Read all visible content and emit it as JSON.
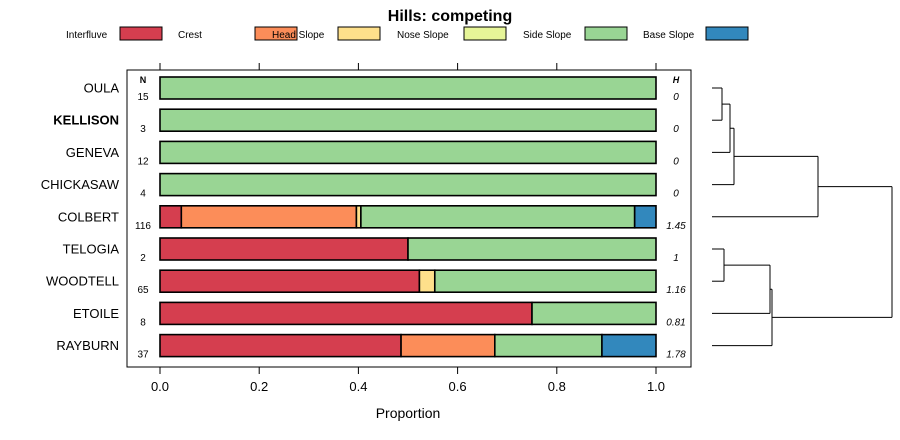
{
  "chart_data": {
    "type": "bar",
    "orientation": "horizontal",
    "stacked": true,
    "title": "Hills: competing",
    "xlabel": "Proportion",
    "xlim": [
      0,
      1
    ],
    "xticks": [
      "0.0",
      "0.2",
      "0.4",
      "0.6",
      "0.8",
      "1.0"
    ],
    "n_header": "N",
    "h_header": "H",
    "legend": [
      {
        "name": "Interfluve",
        "color": "#d53e4f"
      },
      {
        "name": "Crest",
        "color": "#fc8d59"
      },
      {
        "name": "Head Slope",
        "color": "#fee08b"
      },
      {
        "name": "Nose Slope",
        "color": "#e6f598"
      },
      {
        "name": "Side Slope",
        "color": "#99d594"
      },
      {
        "name": "Base Slope",
        "color": "#3288bd"
      }
    ],
    "categories": [
      {
        "name": "OULA",
        "bold": false,
        "n": "15",
        "h": "0",
        "values": [
          0,
          0,
          0,
          0,
          1.0,
          0
        ]
      },
      {
        "name": "KELLISON",
        "bold": true,
        "n": "3",
        "h": "0",
        "values": [
          0,
          0,
          0,
          0,
          1.0,
          0
        ]
      },
      {
        "name": "GENEVA",
        "bold": false,
        "n": "12",
        "h": "0",
        "values": [
          0,
          0,
          0,
          0,
          1.0,
          0
        ]
      },
      {
        "name": "CHICKASAW",
        "bold": false,
        "n": "4",
        "h": "0",
        "values": [
          0,
          0,
          0,
          0,
          1.0,
          0
        ]
      },
      {
        "name": "COLBERT",
        "bold": false,
        "n": "116",
        "h": "1.45",
        "values": [
          0.043,
          0.353,
          0.009,
          0.0,
          0.552,
          0.043
        ]
      },
      {
        "name": "TELOGIA",
        "bold": false,
        "n": "2",
        "h": "1",
        "values": [
          0.5,
          0,
          0,
          0,
          0.5,
          0
        ]
      },
      {
        "name": "WOODTELL",
        "bold": false,
        "n": "65",
        "h": "1.16",
        "values": [
          0.523,
          0,
          0.031,
          0,
          0.446,
          0
        ]
      },
      {
        "name": "ETOILE",
        "bold": false,
        "n": "8",
        "h": "0.81",
        "values": [
          0.75,
          0,
          0,
          0,
          0.25,
          0
        ]
      },
      {
        "name": "RAYBURN",
        "bold": false,
        "n": "37",
        "h": "1.78",
        "values": [
          0.486,
          0.189,
          0,
          0,
          0.216,
          0.109
        ]
      }
    ]
  }
}
